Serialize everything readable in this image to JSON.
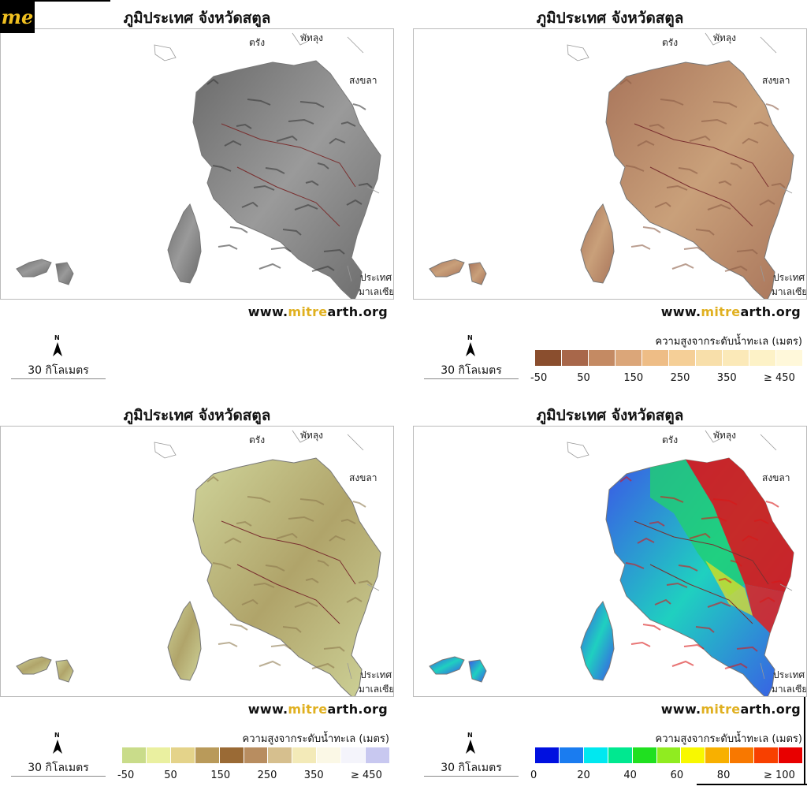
{
  "logo": {
    "text": "me"
  },
  "panels": [
    {
      "title": "ภูมิประเทศ จังหวัดสตูล",
      "labels": {
        "trang": "ตรัง",
        "phatthalung": "พัทลุง",
        "songkhla": "สงขลา",
        "malaysia1": "ประเทศ",
        "malaysia2": "มาเลเซีย"
      },
      "website": {
        "pre": "www.",
        "highlight": "mitre",
        "post": "arth.org"
      },
      "north": "N",
      "scale": "30 กิโลเมตร",
      "palette": "gray",
      "legend": null
    },
    {
      "title": "ภูมิประเทศ จังหวัดสตูล",
      "labels": {
        "trang": "ตรัง",
        "phatthalung": "พัทลุง",
        "songkhla": "สงขลา",
        "malaysia1": "ประเทศ",
        "malaysia2": "มาเลเซีย"
      },
      "website": {
        "pre": "www.",
        "highlight": "mitre",
        "post": "arth.org"
      },
      "north": "N",
      "scale": "30 กิโลเมตร",
      "palette": "brown",
      "legend": {
        "title": "ความสูงจากระดับน้ำทะเล (เมตร)",
        "colors": [
          "#8a4e2e",
          "#a8674a",
          "#c48a63",
          "#dba679",
          "#eebd86",
          "#f5cf97",
          "#f8dfaa",
          "#fbe9b8",
          "#fdf2c7",
          "#fff8da"
        ],
        "labels": [
          "-50",
          "50",
          "150",
          "250",
          "350",
          "≥ 450"
        ]
      }
    },
    {
      "title": "ภูมิประเทศ จังหวัดสตูล",
      "labels": {
        "trang": "ตรัง",
        "phatthalung": "พัทลุง",
        "songkhla": "สงขลา",
        "malaysia1": "ประเทศ",
        "malaysia2": "มาเลเซีย"
      },
      "website": {
        "pre": "www.",
        "highlight": "mitre",
        "post": "arth.org"
      },
      "north": "N",
      "scale": "30 กิโลเมตร",
      "palette": "olive",
      "legend": {
        "title": "ความสูงจากระดับน้ำทะเล (เมตร)",
        "colors": [
          "#c9dc8a",
          "#eaf0a0",
          "#e4d38a",
          "#b99a5a",
          "#9a6a35",
          "#b88d60",
          "#d6bf8e",
          "#f3eab8",
          "#fbf8e6",
          "#f4f4fb",
          "#c8c8f0"
        ],
        "labels": [
          "-50",
          "50",
          "150",
          "250",
          "350",
          "≥ 450"
        ]
      }
    },
    {
      "title": "ภูมิประเทศ จังหวัดสตูล",
      "labels": {
        "trang": "ตรัง",
        "phatthalung": "พัทลุง",
        "songkhla": "สงขลา",
        "malaysia1": "ประเทศ",
        "malaysia2": "มาเลเซีย"
      },
      "website": {
        "pre": "www.",
        "highlight": "mitre",
        "post": "arth.org"
      },
      "north": "N",
      "scale": "30 กิโลเมตร",
      "palette": "rainbow",
      "legend": {
        "title": "ความสูงจากระดับน้ำทะเล (เมตร)",
        "colors": [
          "#0010e0",
          "#1a7cf0",
          "#00e8f0",
          "#00e890",
          "#20e020",
          "#90ec20",
          "#f8f800",
          "#f8b000",
          "#f87800",
          "#f84000",
          "#e80000"
        ],
        "labels": [
          "0",
          "20",
          "40",
          "60",
          "80",
          "≥ 100"
        ]
      }
    }
  ]
}
